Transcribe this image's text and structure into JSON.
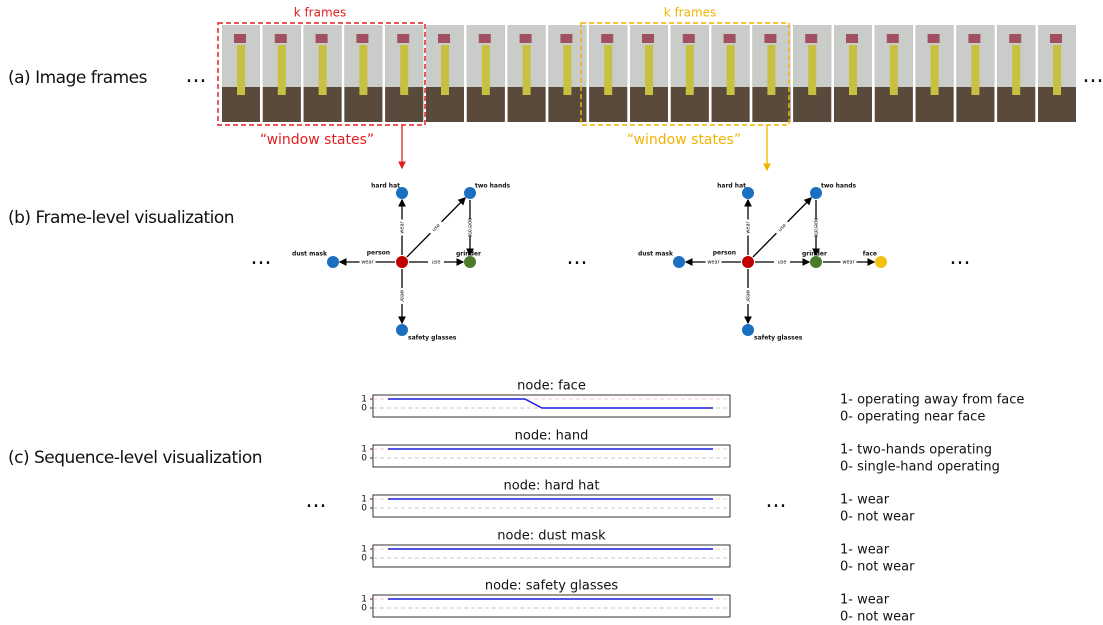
{
  "row_labels": [
    "(a) Image frames",
    "(b) Frame-level visualization",
    "(c) Sequence-level visualization"
  ],
  "ellipsis": "...",
  "windows": [
    {
      "label": "k frames",
      "caption": "“window states”"
    },
    {
      "label": "k frames",
      "caption": "“window states”"
    }
  ],
  "graphs": [
    {
      "nodes": [
        "person",
        "hard hat",
        "two hands",
        "dust mask",
        "grinder",
        "safety glasses"
      ],
      "edges": [
        "wear",
        "use",
        "operate",
        "wear",
        "use",
        "wear"
      ]
    },
    {
      "nodes": [
        "person",
        "hard hat",
        "two hands",
        "dust mask",
        "grinder",
        "safety glasses",
        "face"
      ],
      "edges": [
        "wear",
        "use",
        "operate",
        "wear",
        "use",
        "wear",
        "wear"
      ]
    }
  ],
  "sequence": {
    "panels": [
      {
        "title": "node: face",
        "yticks": [
          1,
          0
        ],
        "values": [
          1,
          1,
          1,
          1,
          1,
          1,
          1,
          1,
          1,
          0,
          0,
          0,
          0,
          0,
          0,
          0,
          0,
          0,
          0,
          0
        ],
        "legend": [
          "1- operating away from face",
          "0- operating near face"
        ]
      },
      {
        "title": "node: hand",
        "yticks": [
          1,
          0
        ],
        "values": [
          1,
          1,
          1,
          1,
          1,
          1,
          1,
          1,
          1,
          1,
          1,
          1,
          1,
          1,
          1,
          1,
          1,
          1,
          1,
          1
        ],
        "legend": [
          "1- two-hands operating",
          "0- single-hand operating"
        ]
      },
      {
        "title": "node: hard hat",
        "yticks": [
          1,
          0
        ],
        "values": [
          1,
          1,
          1,
          1,
          1,
          1,
          1,
          1,
          1,
          1,
          1,
          1,
          1,
          1,
          1,
          1,
          1,
          1,
          1,
          1
        ],
        "legend": [
          "1- wear",
          "0- not wear"
        ]
      },
      {
        "title": "node: dust mask",
        "yticks": [
          1,
          0
        ],
        "values": [
          1,
          1,
          1,
          1,
          1,
          1,
          1,
          1,
          1,
          1,
          1,
          1,
          1,
          1,
          1,
          1,
          1,
          1,
          1,
          1
        ],
        "legend": [
          "1- wear",
          "0- not wear"
        ]
      },
      {
        "title": "node: safety glasses",
        "yticks": [
          1,
          0
        ],
        "values": [
          1,
          1,
          1,
          1,
          1,
          1,
          1,
          1,
          1,
          1,
          1,
          1,
          1,
          1,
          1,
          1,
          1,
          1,
          1,
          1
        ],
        "legend": [
          "1- wear",
          "0- not wear"
        ]
      }
    ]
  }
}
